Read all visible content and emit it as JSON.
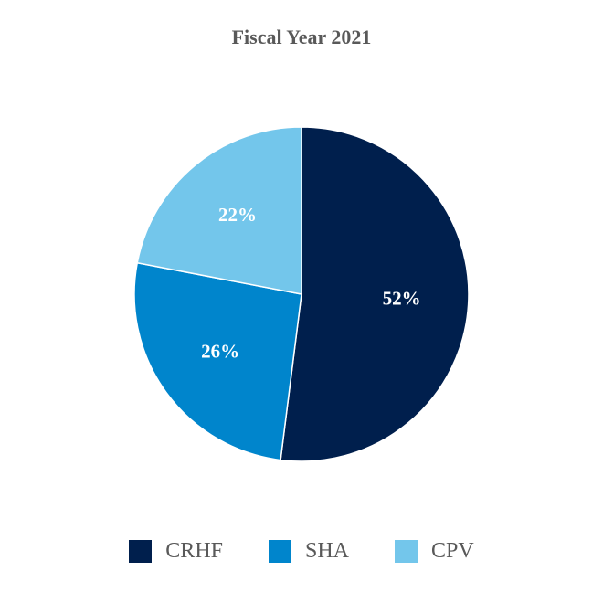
{
  "chart_data": {
    "type": "pie",
    "title": "Fiscal Year 2021",
    "slices": [
      {
        "name": "CRHF",
        "value": 52,
        "label": "52%",
        "color": "#001f4d"
      },
      {
        "name": "SHA",
        "value": 26,
        "label": "26%",
        "color": "#0085cc"
      },
      {
        "name": "CPV",
        "value": 22,
        "label": "22%",
        "color": "#73c6eb"
      }
    ],
    "legend_placement": "bottom"
  }
}
